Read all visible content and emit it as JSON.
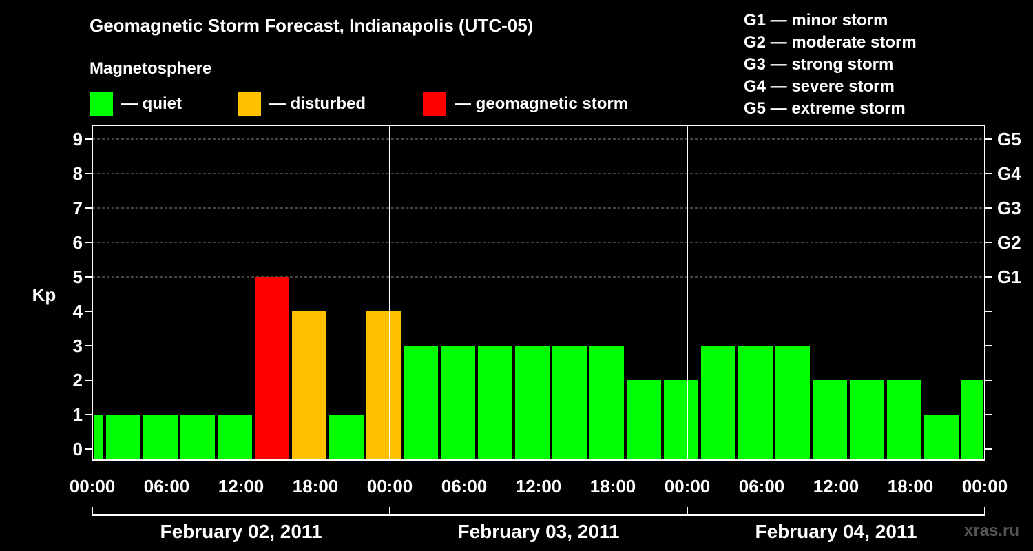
{
  "header": {
    "title": "Geomagnetic Storm Forecast, Indianapolis (UTC-05)",
    "subtitle": "Magnetosphere"
  },
  "legend": [
    {
      "label": "— quiet",
      "color": "#00ff00"
    },
    {
      "label": "— disturbed",
      "color": "#ffc000"
    },
    {
      "label": "— geomagnetic storm",
      "color": "#ff0000"
    }
  ],
  "storm_scale": [
    "G1 — minor storm",
    "G2 — moderate storm",
    "G3 — strong storm",
    "G4 — severe storm",
    "G5 — extreme storm"
  ],
  "watermark": "xras.ru",
  "chart_data": {
    "type": "bar",
    "ylabel": "Kp",
    "ylim": [
      0,
      9
    ],
    "yticks": [
      0,
      1,
      2,
      3,
      4,
      5,
      6,
      7,
      8,
      9
    ],
    "right_axis": [
      {
        "kp": 5,
        "label": "G1"
      },
      {
        "kp": 6,
        "label": "G2"
      },
      {
        "kp": 7,
        "label": "G3"
      },
      {
        "kp": 8,
        "label": "G4"
      },
      {
        "kp": 9,
        "label": "G5"
      }
    ],
    "x_hours_range": [
      0,
      72
    ],
    "xtick_labels": [
      "00:00",
      "06:00",
      "12:00",
      "18:00",
      "00:00",
      "06:00",
      "12:00",
      "18:00",
      "00:00",
      "06:00",
      "12:00",
      "18:00",
      "00:00"
    ],
    "days": [
      "February 02, 2011",
      "February 03, 2011",
      "February 04, 2011"
    ],
    "grid": "dashed horizontal at Kp 5-9",
    "bars": [
      {
        "start": "00:00",
        "end": "01:00",
        "kp": 1,
        "level": "quiet"
      },
      {
        "start": "01:00",
        "end": "04:00",
        "kp": 1,
        "level": "quiet"
      },
      {
        "start": "04:00",
        "end": "07:00",
        "kp": 1,
        "level": "quiet"
      },
      {
        "start": "07:00",
        "end": "10:00",
        "kp": 1,
        "level": "quiet"
      },
      {
        "start": "10:00",
        "end": "13:00",
        "kp": 1,
        "level": "quiet"
      },
      {
        "start": "13:00",
        "end": "16:00",
        "kp": 5,
        "level": "storm"
      },
      {
        "start": "16:00",
        "end": "19:00",
        "kp": 4,
        "level": "disturbed"
      },
      {
        "start": "19:00",
        "end": "22:00",
        "kp": 1,
        "level": "quiet"
      },
      {
        "start": "22:00",
        "end": "01:00",
        "kp": 4,
        "level": "disturbed"
      },
      {
        "start": "01:00",
        "end": "04:00",
        "kp": 3,
        "level": "quiet"
      },
      {
        "start": "04:00",
        "end": "07:00",
        "kp": 3,
        "level": "quiet"
      },
      {
        "start": "07:00",
        "end": "10:00",
        "kp": 3,
        "level": "quiet"
      },
      {
        "start": "10:00",
        "end": "13:00",
        "kp": 3,
        "level": "quiet"
      },
      {
        "start": "13:00",
        "end": "16:00",
        "kp": 3,
        "level": "quiet"
      },
      {
        "start": "16:00",
        "end": "19:00",
        "kp": 3,
        "level": "quiet"
      },
      {
        "start": "19:00",
        "end": "22:00",
        "kp": 2,
        "level": "quiet"
      },
      {
        "start": "22:00",
        "end": "01:00",
        "kp": 2,
        "level": "quiet"
      },
      {
        "start": "01:00",
        "end": "04:00",
        "kp": 3,
        "level": "quiet"
      },
      {
        "start": "04:00",
        "end": "07:00",
        "kp": 3,
        "level": "quiet"
      },
      {
        "start": "07:00",
        "end": "10:00",
        "kp": 3,
        "level": "quiet"
      },
      {
        "start": "10:00",
        "end": "13:00",
        "kp": 2,
        "level": "quiet"
      },
      {
        "start": "13:00",
        "end": "16:00",
        "kp": 2,
        "level": "quiet"
      },
      {
        "start": "16:00",
        "end": "19:00",
        "kp": 2,
        "level": "quiet"
      },
      {
        "start": "19:00",
        "end": "22:00",
        "kp": 1,
        "level": "quiet"
      },
      {
        "start": "22:00",
        "end": "00:00",
        "kp": 2,
        "level": "quiet"
      }
    ]
  }
}
